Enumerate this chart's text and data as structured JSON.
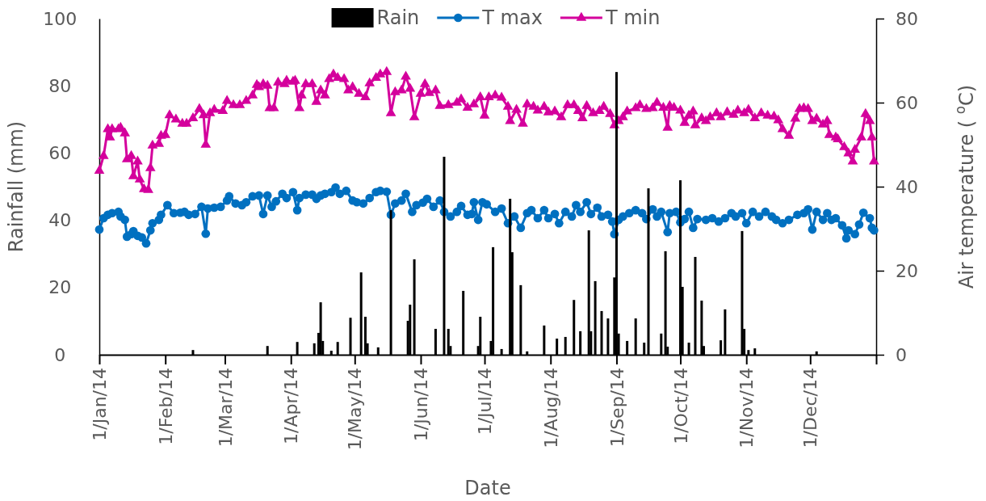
{
  "chart_data": {
    "type": "line",
    "xlabel": "Date",
    "ylabel": "Rainfall (mm)",
    "y2label": "Air temperature ( $^{o}$C)",
    "legend": "top",
    "grid": false,
    "xlim": [
      "2014-01-01",
      "2015-01-01"
    ],
    "xticks": [
      {
        "value": "2014-01-01",
        "label": "1/Jan/14"
      },
      {
        "value": "2014-02-01",
        "label": "1/Feb/14"
      },
      {
        "value": "2014-03-01",
        "label": "1/Mar/14"
      },
      {
        "value": "2014-04-01",
        "label": "1/Apr/14"
      },
      {
        "value": "2014-05-01",
        "label": "1/May/14"
      },
      {
        "value": "2014-06-01",
        "label": "1/Jun/14"
      },
      {
        "value": "2014-07-01",
        "label": "1/Jul/14"
      },
      {
        "value": "2014-08-01",
        "label": "1/Aug/14"
      },
      {
        "value": "2014-09-01",
        "label": "1/Sep/14"
      },
      {
        "value": "2014-10-01",
        "label": "1/Oct/14"
      },
      {
        "value": "2014-11-01",
        "label": "1/Nov/14"
      },
      {
        "value": "2014-12-01",
        "label": "1/Dec/14"
      },
      {
        "value": "2015-01-01",
        "label": null
      }
    ],
    "ylim": [
      0,
      100
    ],
    "yticks": [
      0,
      20,
      40,
      60,
      80,
      100
    ],
    "y2lim": [
      0,
      80
    ],
    "y2ticks": [
      0,
      20,
      40,
      60,
      80
    ],
    "series": [
      {
        "name": "Rain",
        "type": "bar",
        "color": "#000000",
        "x": [
          "2014-02-14",
          "2014-03-21",
          "2014-04-04",
          "2014-04-12",
          "2014-04-14",
          "2014-04-15",
          "2014-04-16",
          "2014-04-20",
          "2014-04-23",
          "2014-04-29",
          "2014-05-04",
          "2014-05-06",
          "2014-05-07",
          "2014-05-12",
          "2014-05-18",
          "2014-05-26",
          "2014-05-27",
          "2014-05-29",
          "2014-06-08",
          "2014-06-12",
          "2014-06-14",
          "2014-06-15",
          "2014-06-21",
          "2014-06-28",
          "2014-06-29",
          "2014-07-04",
          "2014-07-05",
          "2014-07-09",
          "2014-07-13",
          "2014-07-14",
          "2014-07-18",
          "2014-07-21",
          "2014-07-29",
          "2014-08-04",
          "2014-08-08",
          "2014-08-12",
          "2014-08-15",
          "2014-08-19",
          "2014-08-20",
          "2014-08-22",
          "2014-08-25",
          "2014-08-28",
          "2014-08-31",
          "2014-09-01",
          "2014-09-02",
          "2014-09-06",
          "2014-09-10",
          "2014-09-14",
          "2014-09-16",
          "2014-09-22",
          "2014-09-24",
          "2014-09-25",
          "2014-10-01",
          "2014-10-02",
          "2014-10-05",
          "2014-10-08",
          "2014-10-11",
          "2014-10-12",
          "2014-10-20",
          "2014-10-22",
          "2014-10-30",
          "2014-10-31",
          "2014-11-02",
          "2014-11-05",
          "2014-12-04"
        ],
        "values": [
          1.4,
          2.6,
          3.8,
          3.4,
          6.5,
          15.6,
          4.1,
          1.2,
          3.8,
          11,
          24.5,
          11.3,
          3.4,
          2.2,
          43,
          10.1,
          14.9,
          28.4,
          7.7,
          58.9,
          7.7,
          2.6,
          19,
          2.6,
          11.3,
          4.1,
          32,
          1.7,
          46.4,
          30.5,
          20.7,
          1,
          8.7,
          4.8,
          5.3,
          16.3,
          7,
          37,
          7,
          21.9,
          13,
          10.8,
          23,
          84.1,
          6.3,
          4.1,
          10.8,
          3.6,
          49.5,
          6.3,
          30.8,
          2.4,
          51.9,
          20.2,
          3.6,
          29.1,
          16.1,
          2.6,
          4.3,
          13.5,
          36.8,
          7.7,
          1.4,
          1.9,
          1
        ]
      },
      {
        "name": "T max",
        "axis": "y2",
        "marker": "circle",
        "color": "#0070c0",
        "x": [
          "2014-01-01",
          "2014-01-03",
          "2014-01-05",
          "2014-01-07",
          "2014-01-10",
          "2014-01-11",
          "2014-01-13",
          "2014-01-14",
          "2014-01-16",
          "2014-01-17",
          "2014-01-19",
          "2014-01-21",
          "2014-01-23",
          "2014-01-25",
          "2014-01-26",
          "2014-01-29",
          "2014-01-30",
          "2014-02-02",
          "2014-02-05",
          "2014-02-08",
          "2014-02-10",
          "2014-02-12",
          "2014-02-15",
          "2014-02-18",
          "2014-02-20",
          "2014-02-21",
          "2014-02-24",
          "2014-02-27",
          "2014-03-02",
          "2014-03-03",
          "2014-03-06",
          "2014-03-09",
          "2014-03-11",
          "2014-03-14",
          "2014-03-17",
          "2014-03-19",
          "2014-03-21",
          "2014-03-23",
          "2014-03-25",
          "2014-03-28",
          "2014-03-30",
          "2014-04-02",
          "2014-04-04",
          "2014-04-05",
          "2014-04-08",
          "2014-04-11",
          "2014-04-13",
          "2014-04-15",
          "2014-04-17",
          "2014-04-20",
          "2014-04-22",
          "2014-04-24",
          "2014-04-27",
          "2014-04-30",
          "2014-05-02",
          "2014-05-05",
          "2014-05-08",
          "2014-05-11",
          "2014-05-13",
          "2014-05-16",
          "2014-05-18",
          "2014-05-20",
          "2014-05-23",
          "2014-05-25",
          "2014-05-28",
          "2014-05-30",
          "2014-06-02",
          "2014-06-04",
          "2014-06-07",
          "2014-06-10",
          "2014-06-12",
          "2014-06-15",
          "2014-06-18",
          "2014-06-20",
          "2014-06-23",
          "2014-06-25",
          "2014-06-26",
          "2014-06-28",
          "2014-06-30",
          "2014-07-02",
          "2014-07-06",
          "2014-07-09",
          "2014-07-12",
          "2014-07-15",
          "2014-07-18",
          "2014-07-21",
          "2014-07-23",
          "2014-07-26",
          "2014-07-29",
          "2014-07-31",
          "2014-08-03",
          "2014-08-05",
          "2014-08-08",
          "2014-08-11",
          "2014-08-13",
          "2014-08-15",
          "2014-08-18",
          "2014-08-20",
          "2014-08-23",
          "2014-08-25",
          "2014-08-28",
          "2014-08-30",
          "2014-08-31",
          "2014-09-02",
          "2014-09-04",
          "2014-09-07",
          "2014-09-10",
          "2014-09-13",
          "2014-09-15",
          "2014-09-18",
          "2014-09-20",
          "2014-09-22",
          "2014-09-25",
          "2014-09-26",
          "2014-09-29",
          "2014-10-01",
          "2014-10-03",
          "2014-10-05",
          "2014-10-07",
          "2014-10-09",
          "2014-10-13",
          "2014-10-16",
          "2014-10-19",
          "2014-10-22",
          "2014-10-25",
          "2014-10-27",
          "2014-10-30",
          "2014-11-01",
          "2014-11-04",
          "2014-11-07",
          "2014-11-10",
          "2014-11-13",
          "2014-11-15",
          "2014-11-18",
          "2014-11-21",
          "2014-11-25",
          "2014-11-28",
          "2014-11-30",
          "2014-12-02",
          "2014-12-04",
          "2014-12-07",
          "2014-12-09",
          "2014-12-11",
          "2014-12-13",
          "2014-12-16",
          "2014-12-18",
          "2014-12-19",
          "2014-12-22",
          "2014-12-24",
          "2014-12-26",
          "2014-12-29",
          "2014-12-30",
          "2014-12-31"
        ],
        "values": [
          29.8,
          32.5,
          33.3,
          33.7,
          34,
          32.9,
          32.1,
          28.1,
          28.7,
          29.4,
          28.3,
          27.9,
          26.5,
          29.6,
          31.3,
          32.1,
          33.3,
          35.6,
          33.7,
          33.8,
          34,
          33.3,
          33.5,
          35.2,
          28.8,
          34.8,
          35,
          35.2,
          36.7,
          37.7,
          36,
          35.6,
          36.3,
          37.7,
          37.9,
          33.5,
          37.9,
          35.2,
          36.5,
          38.3,
          37.3,
          38.7,
          34.4,
          37.3,
          38.1,
          38.1,
          37.1,
          37.9,
          38.3,
          38.7,
          39.8,
          38.3,
          39,
          36.7,
          36.3,
          36,
          37.3,
          38.7,
          39,
          38.8,
          33.3,
          36,
          36.7,
          38.3,
          34,
          35.6,
          36.2,
          37.1,
          35.2,
          36.7,
          34,
          32.9,
          34,
          35.4,
          33.3,
          33.5,
          36.3,
          32.1,
          36.3,
          35.8,
          34,
          34.8,
          31.3,
          32.9,
          30.2,
          33.7,
          34.4,
          32.5,
          34.4,
          32.5,
          33.5,
          31.3,
          34,
          32.9,
          35.6,
          34,
          36.3,
          33.5,
          35,
          32.9,
          33.3,
          31.7,
          28.7,
          32.1,
          32.9,
          33.7,
          34.4,
          33.7,
          32.3,
          34.6,
          32.9,
          34,
          29.2,
          33.7,
          34,
          31.5,
          32.3,
          34,
          30.2,
          32.3,
          32.1,
          32.5,
          31.7,
          32.5,
          33.7,
          32.9,
          33.7,
          31.3,
          34,
          32.9,
          34,
          32.9,
          32.1,
          31.3,
          32.1,
          33.3,
          33.7,
          34.6,
          29.8,
          34,
          32.1,
          33.7,
          32.1,
          32.5,
          30.8,
          27.7,
          29.6,
          28.7,
          31,
          33.8,
          32.5,
          30.2,
          29.6
        ]
      },
      {
        "name": "T min",
        "axis": "y2",
        "marker": "triangle",
        "color": "#d4009c",
        "x": [
          "2014-01-01",
          "2014-01-03",
          "2014-01-05",
          "2014-01-06",
          "2014-01-07",
          "2014-01-10",
          "2014-01-11",
          "2014-01-13",
          "2014-01-14",
          "2014-01-16",
          "2014-01-17",
          "2014-01-19",
          "2014-01-20",
          "2014-01-22",
          "2014-01-24",
          "2014-01-25",
          "2014-01-26",
          "2014-01-29",
          "2014-01-30",
          "2014-02-01",
          "2014-02-03",
          "2014-02-06",
          "2014-02-09",
          "2014-02-11",
          "2014-02-14",
          "2014-02-17",
          "2014-02-19",
          "2014-02-20",
          "2014-02-22",
          "2014-02-24",
          "2014-02-28",
          "2014-03-02",
          "2014-03-05",
          "2014-03-08",
          "2014-03-11",
          "2014-03-14",
          "2014-03-16",
          "2014-03-17",
          "2014-03-19",
          "2014-03-21",
          "2014-03-22",
          "2014-03-24",
          "2014-03-26",
          "2014-03-29",
          "2014-03-30",
          "2014-04-02",
          "2014-04-03",
          "2014-04-05",
          "2014-04-06",
          "2014-04-08",
          "2014-04-11",
          "2014-04-13",
          "2014-04-15",
          "2014-04-17",
          "2014-04-19",
          "2014-04-21",
          "2014-04-23",
          "2014-04-26",
          "2014-04-28",
          "2014-04-30",
          "2014-05-03",
          "2014-05-06",
          "2014-05-08",
          "2014-05-11",
          "2014-05-13",
          "2014-05-16",
          "2014-05-18",
          "2014-05-20",
          "2014-05-23",
          "2014-05-25",
          "2014-05-27",
          "2014-05-29",
          "2014-06-01",
          "2014-06-03",
          "2014-06-05",
          "2014-06-08",
          "2014-06-10",
          "2014-06-14",
          "2014-06-18",
          "2014-06-20",
          "2014-06-23",
          "2014-06-26",
          "2014-06-29",
          "2014-07-01",
          "2014-07-03",
          "2014-07-06",
          "2014-07-09",
          "2014-07-12",
          "2014-07-13",
          "2014-07-16",
          "2014-07-19",
          "2014-07-21",
          "2014-07-24",
          "2014-07-26",
          "2014-07-29",
          "2014-07-31",
          "2014-08-03",
          "2014-08-06",
          "2014-08-09",
          "2014-08-12",
          "2014-08-14",
          "2014-08-16",
          "2014-08-18",
          "2014-08-21",
          "2014-08-24",
          "2014-08-26",
          "2014-08-29",
          "2014-08-31",
          "2014-09-02",
          "2014-09-04",
          "2014-09-06",
          "2014-09-10",
          "2014-09-12",
          "2014-09-15",
          "2014-09-18",
          "2014-09-20",
          "2014-09-23",
          "2014-09-25",
          "2014-09-26",
          "2014-09-28",
          "2014-10-01",
          "2014-10-03",
          "2014-10-05",
          "2014-10-07",
          "2014-10-08",
          "2014-10-11",
          "2014-10-13",
          "2014-10-15",
          "2014-10-18",
          "2014-10-20",
          "2014-10-23",
          "2014-10-26",
          "2014-10-28",
          "2014-10-31",
          "2014-11-02",
          "2014-11-05",
          "2014-11-08",
          "2014-11-11",
          "2014-11-14",
          "2014-11-16",
          "2014-11-18",
          "2014-11-21",
          "2014-11-24",
          "2014-11-26",
          "2014-11-28",
          "2014-11-30",
          "2014-12-02",
          "2014-12-04",
          "2014-12-07",
          "2014-12-09",
          "2014-12-10",
          "2014-12-13",
          "2014-12-14",
          "2014-12-17",
          "2014-12-19",
          "2014-12-21",
          "2014-12-22",
          "2014-12-25",
          "2014-12-27",
          "2014-12-29",
          "2014-12-30",
          "2014-12-31"
        ],
        "values": [
          43.8,
          47.3,
          53.7,
          51.7,
          53.7,
          53.7,
          54,
          52.7,
          46.5,
          47.3,
          42.5,
          46,
          41.7,
          39.4,
          39.2,
          44.4,
          49.8,
          50.2,
          52.1,
          52.3,
          57,
          56,
          55,
          55,
          56.3,
          58.5,
          57,
          50,
          57.5,
          58.3,
          58,
          60.4,
          59.4,
          59.4,
          60.4,
          61.7,
          64.2,
          63.7,
          64.4,
          64,
          58.7,
          58.7,
          64.8,
          64.4,
          65.2,
          65,
          65.2,
          58.7,
          61.7,
          64.4,
          64.4,
          60.2,
          62.9,
          61.7,
          65.6,
          66.7,
          65.9,
          65.6,
          62.9,
          63.7,
          62.1,
          61.3,
          64.6,
          65.9,
          66.7,
          67.3,
          57.5,
          62.5,
          62.9,
          66.2,
          63.3,
          56.5,
          62.1,
          64.4,
          62.3,
          62.9,
          59.2,
          59.4,
          60,
          60.8,
          58.8,
          59.6,
          61.3,
          56.9,
          61.3,
          61.7,
          61.2,
          59,
          55.6,
          58.3,
          55,
          59.6,
          59,
          58.1,
          59,
          57.7,
          57.9,
          56.5,
          59.4,
          59.4,
          58,
          56.3,
          59.2,
          57.5,
          58,
          59,
          57.3,
          54.6,
          55.6,
          56.5,
          57.9,
          58.7,
          59.4,
          58.5,
          58.7,
          60,
          58.8,
          54,
          59.2,
          58.8,
          58.1,
          55.2,
          56.9,
          57.9,
          54.6,
          56.3,
          55.6,
          56.5,
          57.5,
          56.5,
          57.7,
          57.1,
          58.1,
          57.5,
          58.3,
          56.3,
          57.5,
          56.9,
          56.7,
          55.8,
          53.7,
          52.1,
          56.2,
          58.5,
          58.7,
          58.5,
          55.6,
          56.2,
          54.8,
          55.6,
          52.3,
          51.7,
          51.3,
          49.4,
          47.9,
          46,
          48.8,
          51.7,
          57.3,
          55.6,
          51.7,
          46
        ]
      }
    ]
  }
}
